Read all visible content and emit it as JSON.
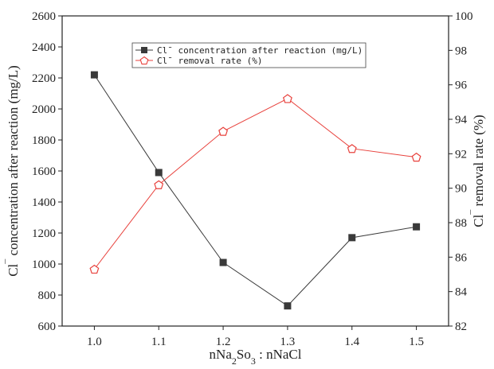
{
  "chart_data": {
    "type": "line",
    "x": [
      1.0,
      1.1,
      1.2,
      1.3,
      1.4,
      1.5
    ],
    "x_tick_labels": [
      "1.0",
      "1.1",
      "1.2",
      "1.3",
      "1.4",
      "1.5"
    ],
    "xlim": [
      0.95,
      1.55
    ],
    "xlabel_parts": [
      "nNa",
      "2",
      "So",
      "3",
      " : nNaCl"
    ],
    "y_left": {
      "label_parts": [
        "Cl",
        "¯",
        " concentration after reaction (mg/L)"
      ],
      "ylim": [
        600,
        2600
      ],
      "ticks": [
        600,
        800,
        1000,
        1200,
        1400,
        1600,
        1800,
        2000,
        2200,
        2400,
        2600
      ]
    },
    "y_right": {
      "label_parts": [
        "Cl",
        "¯",
        " removal rate (%)"
      ],
      "ylim": [
        82,
        100
      ],
      "ticks": [
        82,
        84,
        86,
        88,
        90,
        92,
        94,
        96,
        98,
        100
      ]
    },
    "series": [
      {
        "name": "Cl¯ concentration after reaction (mg/L)",
        "axis": "left",
        "marker": "square",
        "color": "#3a3a3a",
        "values": [
          2220,
          1590,
          1010,
          730,
          1170,
          1240
        ]
      },
      {
        "name": "Cl¯ removal rate (%)",
        "axis": "right",
        "marker": "pentagon-open",
        "color": "#e8413c",
        "values": [
          85.3,
          90.2,
          93.3,
          95.2,
          92.3,
          91.8
        ]
      }
    ],
    "legend_position": "top-center",
    "grid": false
  }
}
